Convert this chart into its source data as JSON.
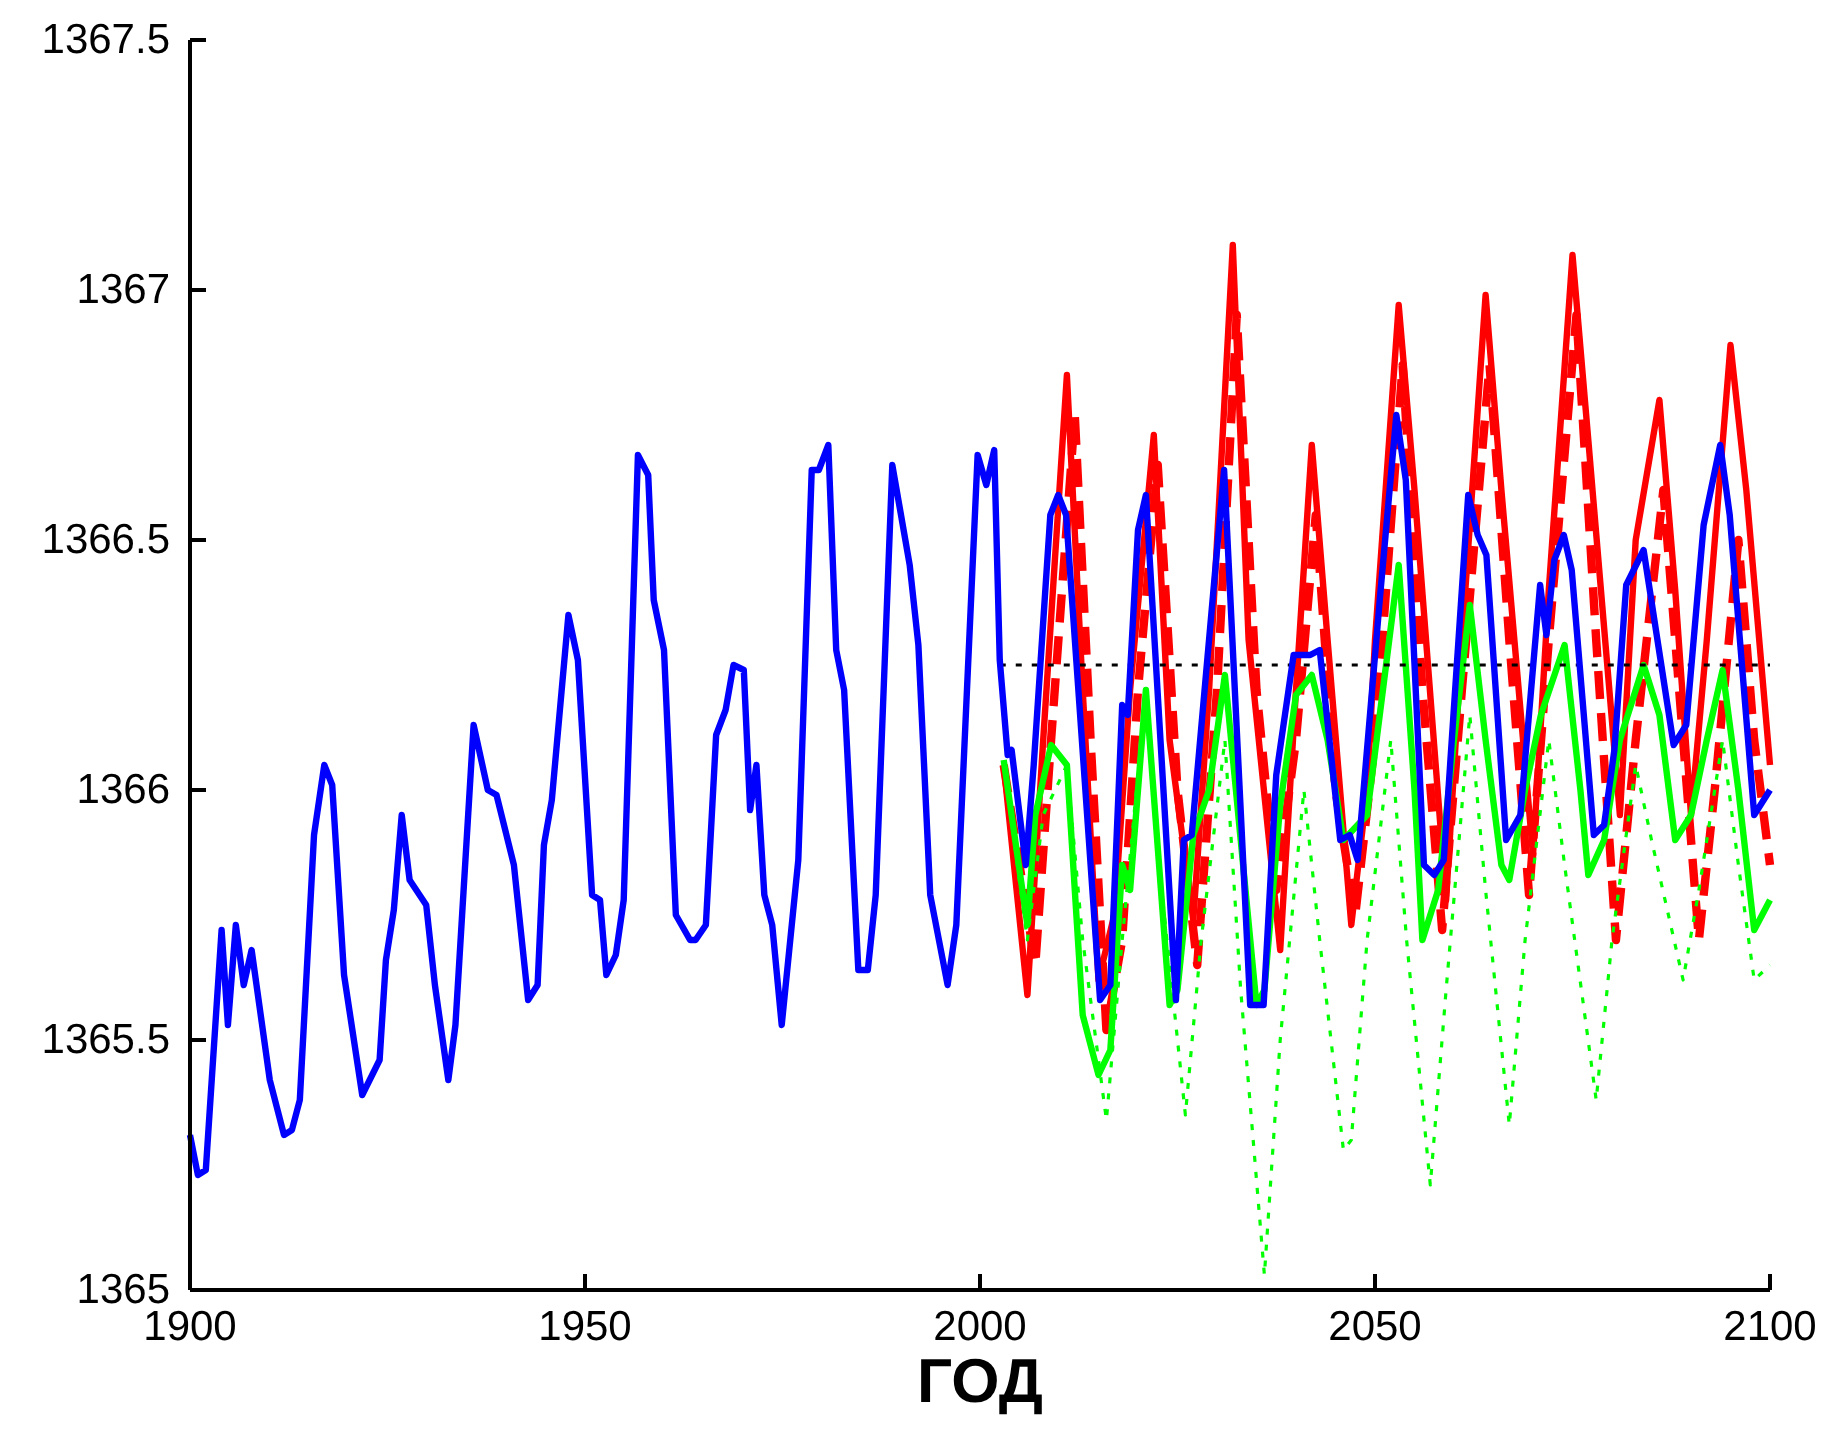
{
  "chart_data": {
    "type": "line",
    "xlabel": "ГОД",
    "xlim": [
      1900,
      2100
    ],
    "xticks": [
      1900,
      1950,
      2000,
      2050,
      2100
    ],
    "ylim": [
      1365,
      1367.5
    ],
    "yticks": [
      1365,
      1365.5,
      1366,
      1366.5,
      1367,
      1367.5
    ],
    "grid": false,
    "marker": "none",
    "series": [
      {
        "color": "#0000ff",
        "line_style": "solid",
        "x": [
          1900,
          1901,
          1902,
          1904,
          1904.8,
          1905.8,
          1906.8,
          1907.8,
          1910.1,
          1911.9,
          1912.9,
          1913.9,
          1915.7,
          1917,
          1918,
          1919.5,
          1921.8,
          1924,
          1924.8,
          1925.8,
          1926.8,
          1927.8,
          1929.9,
          1931,
          1932.7,
          1933.6,
          1935.9,
          1937.7,
          1938.8,
          1941,
          1942.8,
          1944,
          1944.8,
          1945.8,
          1947.9,
          1949.1,
          1950.9,
          1951.9,
          1952.7,
          1953.9,
          1954.9,
          1956.7,
          1958,
          1958.7,
          1960,
          1961.5,
          1963.3,
          1964,
          1965.3,
          1966.6,
          1967.8,
          1968.8,
          1970.1,
          1970.9,
          1971.7,
          1972.7,
          1973.7,
          1974.9,
          1977,
          1978.7,
          1979.6,
          1980.8,
          1981.8,
          1982.8,
          1984.6,
          1985.8,
          1986.8,
          1988.9,
          1991.1,
          1992.2,
          1993.7,
          1995.9,
          1997,
          1999.7,
          2000.8,
          2001.8,
          2002.5,
          2003.5,
          2004,
          2005.8,
          2006.8,
          2008.9,
          2009.9,
          2010.9,
          2015.2,
          2016.5,
          2018,
          2018.7,
          2020,
          2021,
          2024.8,
          2025.8,
          2026.8,
          2030.9,
          2034.2,
          2035.9,
          2037.5,
          2039.7,
          2041.8,
          2043,
          2045.6,
          2046.8,
          2047.8,
          2050.6,
          2052.7,
          2053.9,
          2056.2,
          2057.5,
          2058.7,
          2061.8,
          2063,
          2064.1,
          2066.6,
          2068.4,
          2070.9,
          2071.7,
          2072.7,
          2073.9,
          2074.9,
          2077.7,
          2079,
          2080.3,
          2081.8,
          2084,
          2087.8,
          2089.4,
          2091.6,
          2093.7,
          2094.9,
          2098,
          2100
        ],
        "values": [
          1365.31,
          1365.23,
          1365.24,
          1365.72,
          1365.53,
          1365.73,
          1365.61,
          1365.68,
          1365.42,
          1365.31,
          1365.32,
          1365.38,
          1365.91,
          1366.05,
          1366.01,
          1365.63,
          1365.39,
          1365.46,
          1365.66,
          1365.76,
          1365.95,
          1365.82,
          1365.77,
          1365.61,
          1365.42,
          1365.53,
          1366.13,
          1366,
          1365.99,
          1365.85,
          1365.58,
          1365.61,
          1365.89,
          1365.98,
          1366.35,
          1366.26,
          1365.79,
          1365.78,
          1365.63,
          1365.67,
          1365.78,
          1366.67,
          1366.63,
          1366.38,
          1366.28,
          1365.75,
          1365.7,
          1365.7,
          1365.73,
          1366.11,
          1366.16,
          1366.25,
          1366.24,
          1365.96,
          1366.05,
          1365.79,
          1365.73,
          1365.53,
          1365.86,
          1366.64,
          1366.64,
          1366.69,
          1366.28,
          1366.2,
          1365.64,
          1365.64,
          1365.79,
          1366.65,
          1366.45,
          1366.29,
          1365.79,
          1365.61,
          1365.73,
          1366.67,
          1366.61,
          1366.68,
          1366.26,
          1366.07,
          1366.08,
          1365.85,
          1366.05,
          1366.55,
          1366.59,
          1366.55,
          1365.58,
          1365.61,
          1366.17,
          1366.15,
          1366.52,
          1366.59,
          1365.58,
          1365.9,
          1365.91,
          1366.64,
          1365.57,
          1365.57,
          1366.03,
          1366.27,
          1366.27,
          1366.28,
          1365.9,
          1365.91,
          1365.86,
          1366.38,
          1366.75,
          1366.62,
          1365.85,
          1365.83,
          1365.86,
          1366.59,
          1366.51,
          1366.47,
          1365.9,
          1365.95,
          1366.41,
          1366.31,
          1366.46,
          1366.51,
          1366.44,
          1365.91,
          1365.93,
          1366.08,
          1366.41,
          1366.48,
          1366.09,
          1366.13,
          1366.53,
          1366.69,
          1366.55,
          1365.95,
          1366
        ]
      },
      {
        "color": "#ff0000",
        "line_style": "solid",
        "x": [
          2003,
          2006,
          2008,
          2011,
          2013,
          2015,
          2017,
          2019,
          2022,
          2024,
          2027,
          2029,
          2032,
          2034,
          2038,
          2040,
          2042,
          2044,
          2047,
          2049,
          2050,
          2053,
          2055,
          2059,
          2061,
          2064,
          2066,
          2070,
          2072,
          2075,
          2077,
          2081,
          2083,
          2086,
          2088,
          2090,
          2092,
          2095,
          2097,
          2100
        ],
        "values": [
          1366.05,
          1365.59,
          1366.1,
          1366.83,
          1366.2,
          1365.62,
          1365.75,
          1366.2,
          1366.71,
          1366.1,
          1365.74,
          1366.2,
          1367.09,
          1366.3,
          1365.68,
          1366.2,
          1366.69,
          1366.3,
          1365.73,
          1366,
          1366.3,
          1366.97,
          1366.6,
          1365.78,
          1366.3,
          1366.99,
          1366.6,
          1365.87,
          1366.4,
          1367.07,
          1366.7,
          1365.95,
          1366.5,
          1366.78,
          1366.4,
          1365.95,
          1366.3,
          1366.89,
          1366.6,
          1366.05
        ]
      },
      {
        "color": "#ff0000",
        "line_style": "dashed",
        "x": [
          2003,
          2007,
          2009,
          2012,
          2014,
          2016,
          2018,
          2020,
          2022.5,
          2025,
          2027.5,
          2030,
          2032.5,
          2035,
          2037.5,
          2040,
          2042.5,
          2045,
          2047.5,
          2050,
          2053.5,
          2056,
          2058.5,
          2061,
          2064.5,
          2067,
          2069.5,
          2072,
          2075.5,
          2078,
          2080.5,
          2083,
          2086.5,
          2089,
          2091,
          2093,
          2096,
          2098,
          2100
        ],
        "values": [
          1366.05,
          1365.65,
          1366.1,
          1366.75,
          1366.1,
          1365.52,
          1365.7,
          1366.2,
          1366.65,
          1366,
          1365.65,
          1366.2,
          1366.95,
          1366.2,
          1365.8,
          1366.1,
          1366.55,
          1366,
          1365.75,
          1366.1,
          1366.85,
          1366.2,
          1365.72,
          1366.2,
          1366.85,
          1366.3,
          1365.79,
          1366.3,
          1366.95,
          1366.3,
          1365.7,
          1366.1,
          1366.6,
          1366.1,
          1365.7,
          1366,
          1366.5,
          1366.1,
          1365.85
        ]
      },
      {
        "color": "#00ff00",
        "line_style": "solid",
        "x": [
          2003,
          2006,
          2007,
          2009,
          2011,
          2013,
          2015,
          2016.5,
          2018,
          2019,
          2021,
          2024,
          2025,
          2027,
          2029,
          2031,
          2033,
          2035,
          2036,
          2038,
          2040,
          2042,
          2044,
          2046,
          2049,
          2051,
          2053,
          2055,
          2056,
          2058,
          2060,
          2062,
          2064,
          2066,
          2067,
          2069,
          2071,
          2074,
          2076,
          2077,
          2079,
          2081,
          2084,
          2086,
          2088,
          2090,
          2092,
          2094,
          2096,
          2098,
          2100
        ],
        "values": [
          1366.06,
          1365.73,
          1365.95,
          1366.09,
          1366.05,
          1365.55,
          1365.43,
          1365.48,
          1365.85,
          1365.8,
          1366.2,
          1365.57,
          1365.6,
          1365.91,
          1366,
          1366.23,
          1365.9,
          1365.57,
          1365.6,
          1365.97,
          1366.19,
          1366.23,
          1366.1,
          1365.9,
          1365.95,
          1366.2,
          1366.45,
          1366,
          1365.7,
          1365.8,
          1366.1,
          1366.37,
          1366.1,
          1365.85,
          1365.82,
          1366,
          1366.15,
          1366.29,
          1366,
          1365.83,
          1365.9,
          1366.1,
          1366.25,
          1366.15,
          1365.9,
          1365.95,
          1366.1,
          1366.24,
          1366,
          1365.72,
          1365.78
        ]
      },
      {
        "color": "#00ff00",
        "line_style": "dotted",
        "x": [
          2003,
          2006,
          2008,
          2011,
          2013,
          2016,
          2018,
          2021,
          2023,
          2026,
          2028,
          2031,
          2033,
          2036,
          2038,
          2041,
          2043,
          2046,
          2047,
          2049,
          2052,
          2054,
          2057,
          2059,
          2062,
          2064,
          2067,
          2069,
          2072,
          2074,
          2078,
          2080,
          2083,
          2085,
          2089,
          2091,
          2094,
          2096,
          2098,
          2100
        ],
        "values": [
          1366.05,
          1365.7,
          1365.95,
          1366.05,
          1365.7,
          1365.34,
          1365.7,
          1366.2,
          1365.8,
          1365.35,
          1365.7,
          1366.1,
          1365.6,
          1365.03,
          1365.5,
          1366,
          1365.7,
          1365.28,
          1365.3,
          1365.7,
          1366.1,
          1365.7,
          1365.21,
          1365.6,
          1366.15,
          1365.8,
          1365.33,
          1365.7,
          1366.1,
          1365.85,
          1365.38,
          1365.7,
          1366.05,
          1365.9,
          1365.62,
          1365.8,
          1366.1,
          1365.85,
          1365.62,
          1365.65
        ]
      },
      {
        "color": "#000000",
        "line_style": "dotted",
        "x": [
          2002.5,
          2100
        ],
        "values": [
          1366.25,
          1366.25
        ]
      }
    ]
  }
}
